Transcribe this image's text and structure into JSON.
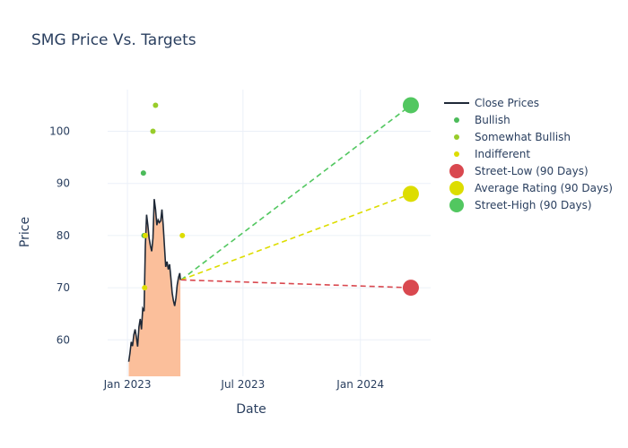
{
  "chart_data": {
    "type": "line",
    "title": "SMG Price Vs. Targets",
    "xlabel": "Date",
    "ylabel": "Price",
    "xlim": [
      "2022-12-01",
      "2024-04-20"
    ],
    "ylim": [
      53,
      108
    ],
    "x_ticks": [
      {
        "date": "2023-01-01",
        "label": "Jan 2023"
      },
      {
        "date": "2023-07-01",
        "label": "Jul 2023"
      },
      {
        "date": "2024-01-01",
        "label": "Jan 2024"
      }
    ],
    "y_ticks": [
      60,
      70,
      80,
      90,
      100
    ],
    "grid": true,
    "legend_position": "right",
    "colors": {
      "close": "#1f2937",
      "fill": "#fbbf9b",
      "bullish": "#4cbb5a",
      "somewhat_bullish": "#98cc2a",
      "indifferent": "#dddd00",
      "street_low": "#d9484f",
      "average": "#dddd00",
      "street_high": "#52c760"
    },
    "close_prices": {
      "name": "Close Prices",
      "points": [
        [
          "2023-01-03",
          55.8
        ],
        [
          "2023-01-05",
          57.5
        ],
        [
          "2023-01-07",
          59.6
        ],
        [
          "2023-01-09",
          58.8
        ],
        [
          "2023-01-11",
          61.0
        ],
        [
          "2023-01-13",
          62.0
        ],
        [
          "2023-01-15",
          60.5
        ],
        [
          "2023-01-17",
          58.7
        ],
        [
          "2023-01-19",
          62.5
        ],
        [
          "2023-01-21",
          64.0
        ],
        [
          "2023-01-23",
          62.0
        ],
        [
          "2023-01-25",
          66.0
        ],
        [
          "2023-01-27",
          65.5
        ],
        [
          "2023-01-29",
          78.0
        ],
        [
          "2023-01-31",
          84.0
        ],
        [
          "2023-02-02",
          82.0
        ],
        [
          "2023-02-04",
          79.5
        ],
        [
          "2023-02-06",
          78.0
        ],
        [
          "2023-02-08",
          77.0
        ],
        [
          "2023-02-10",
          79.5
        ],
        [
          "2023-02-12",
          87.0
        ],
        [
          "2023-02-14",
          85.0
        ],
        [
          "2023-02-16",
          82.0
        ],
        [
          "2023-02-18",
          83.0
        ],
        [
          "2023-02-20",
          82.5
        ],
        [
          "2023-02-22",
          82.8
        ],
        [
          "2023-02-24",
          85.0
        ],
        [
          "2023-02-26",
          82.0
        ],
        [
          "2023-02-28",
          78.0
        ],
        [
          "2023-03-02",
          74.0
        ],
        [
          "2023-03-04",
          75.0
        ],
        [
          "2023-03-06",
          73.5
        ],
        [
          "2023-03-08",
          74.5
        ],
        [
          "2023-03-10",
          72.0
        ],
        [
          "2023-03-12",
          69.0
        ],
        [
          "2023-03-14",
          67.5
        ],
        [
          "2023-03-16",
          66.5
        ],
        [
          "2023-03-18",
          68.0
        ],
        [
          "2023-03-20",
          70.5
        ],
        [
          "2023-03-22",
          72.0
        ],
        [
          "2023-03-24",
          72.8
        ],
        [
          "2023-03-25",
          71.5
        ]
      ]
    },
    "analyst_ratings": [
      {
        "name": "Bullish",
        "points": [
          [
            "2023-01-26",
            92
          ],
          [
            "2023-01-27",
            80
          ]
        ]
      },
      {
        "name": "Somewhat Bullish",
        "points": [
          [
            "2023-02-10",
            100
          ],
          [
            "2023-02-14",
            105
          ]
        ]
      },
      {
        "name": "Indifferent",
        "points": [
          [
            "2023-01-28",
            70
          ],
          [
            "2023-01-29",
            80
          ],
          [
            "2023-03-28",
            80
          ]
        ]
      }
    ],
    "targets_90_days": {
      "start": [
        "2023-03-26",
        71.5
      ],
      "end_date": "2024-03-20",
      "street_low": {
        "name": "Street-Low (90 Days)",
        "value": 70
      },
      "average": {
        "name": "Average Rating (90 Days)",
        "value": 88
      },
      "street_high": {
        "name": "Street-High (90 Days)",
        "value": 105
      }
    }
  }
}
